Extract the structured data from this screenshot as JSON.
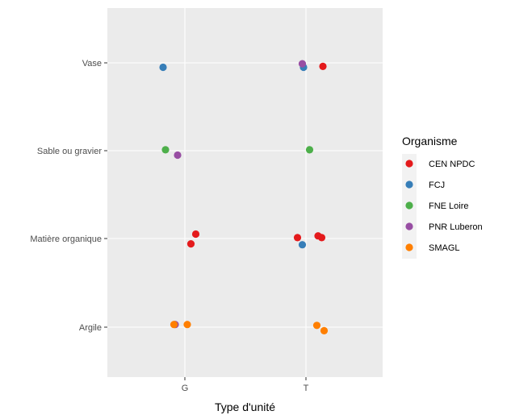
{
  "chart_data": {
    "type": "scatter",
    "title": "",
    "xlabel": "Type d'unité",
    "ylabel": "",
    "x_categories": [
      "G",
      "T"
    ],
    "y_categories": [
      "Argile",
      "Matière organique",
      "Sable ou gravier",
      "Vase"
    ],
    "grid": true,
    "legend": {
      "title": "Organisme",
      "placement": "right"
    },
    "series": [
      {
        "name": "CEN NPDC",
        "color": "#E41A1C",
        "points": [
          {
            "x": "G",
            "y": "Matière organique",
            "jitter_x": 0.09,
            "jitter_y": 0.05
          },
          {
            "x": "G",
            "y": "Matière organique",
            "jitter_x": 0.05,
            "jitter_y": -0.06
          },
          {
            "x": "T",
            "y": "Vase",
            "jitter_x": 0.14,
            "jitter_y": -0.04
          },
          {
            "x": "T",
            "y": "Matière organique",
            "jitter_x": -0.07,
            "jitter_y": 0.01
          },
          {
            "x": "T",
            "y": "Matière organique",
            "jitter_x": 0.1,
            "jitter_y": 0.03
          },
          {
            "x": "T",
            "y": "Matière organique",
            "jitter_x": 0.13,
            "jitter_y": 0.01
          }
        ]
      },
      {
        "name": "FCJ",
        "color": "#377EB8",
        "points": [
          {
            "x": "G",
            "y": "Vase",
            "jitter_x": -0.18,
            "jitter_y": -0.05
          },
          {
            "x": "T",
            "y": "Vase",
            "jitter_x": -0.02,
            "jitter_y": -0.05
          },
          {
            "x": "T",
            "y": "Matière organique",
            "jitter_x": -0.03,
            "jitter_y": -0.07
          }
        ]
      },
      {
        "name": "FNE Loire",
        "color": "#4DAF4A",
        "points": [
          {
            "x": "G",
            "y": "Sable ou gravier",
            "jitter_x": -0.16,
            "jitter_y": 0.01
          },
          {
            "x": "T",
            "y": "Sable ou gravier",
            "jitter_x": 0.03,
            "jitter_y": 0.01
          }
        ]
      },
      {
        "name": "PNR Luberon",
        "color": "#984EA3",
        "points": [
          {
            "x": "G",
            "y": "Sable ou gravier",
            "jitter_x": -0.06,
            "jitter_y": -0.05
          },
          {
            "x": "G",
            "y": "Argile",
            "jitter_x": -0.08,
            "jitter_y": 0.03
          },
          {
            "x": "T",
            "y": "Vase",
            "jitter_x": -0.03,
            "jitter_y": -0.01
          }
        ]
      },
      {
        "name": "SMAGL",
        "color": "#FF7F00",
        "points": [
          {
            "x": "G",
            "y": "Argile",
            "jitter_x": -0.09,
            "jitter_y": 0.03
          },
          {
            "x": "G",
            "y": "Argile",
            "jitter_x": 0.02,
            "jitter_y": 0.03
          },
          {
            "x": "T",
            "y": "Argile",
            "jitter_x": 0.09,
            "jitter_y": 0.02
          },
          {
            "x": "T",
            "y": "Argile",
            "jitter_x": 0.15,
            "jitter_y": -0.04
          }
        ]
      }
    ]
  }
}
